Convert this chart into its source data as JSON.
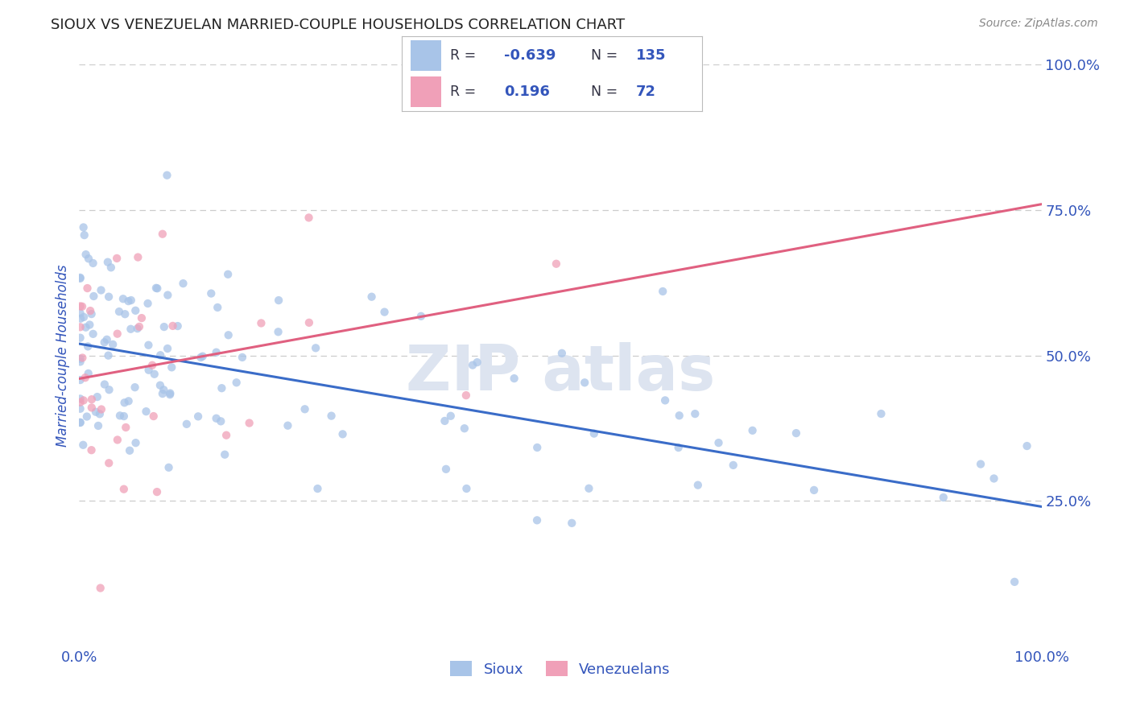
{
  "title": "SIOUX VS VENEZUELAN MARRIED-COUPLE HOUSEHOLDS CORRELATION CHART",
  "source": "Source: ZipAtlas.com",
  "ylabel": "Married-couple Households",
  "sioux_R": -0.639,
  "sioux_N": 135,
  "venezuelan_R": 0.196,
  "venezuelan_N": 72,
  "sioux_color": "#a8c4e8",
  "venezuelan_color": "#f0a0b8",
  "sioux_line_color": "#3a6cc8",
  "venezuelan_line_color": "#e06080",
  "axis_label_color": "#3355bb",
  "tick_color": "#3355bb",
  "grid_color": "#cccccc",
  "background_color": "#ffffff",
  "legend_text_color": "#3355bb",
  "title_color": "#222222",
  "source_color": "#888888",
  "watermark_color": "#dde4f0",
  "dot_size": 55,
  "dot_alpha": 0.75,
  "line_width": 2.2,
  "sioux_line_intercept": 0.52,
  "sioux_line_slope": -0.28,
  "venezuelan_line_intercept": 0.46,
  "venezuelan_line_slope": 0.3
}
